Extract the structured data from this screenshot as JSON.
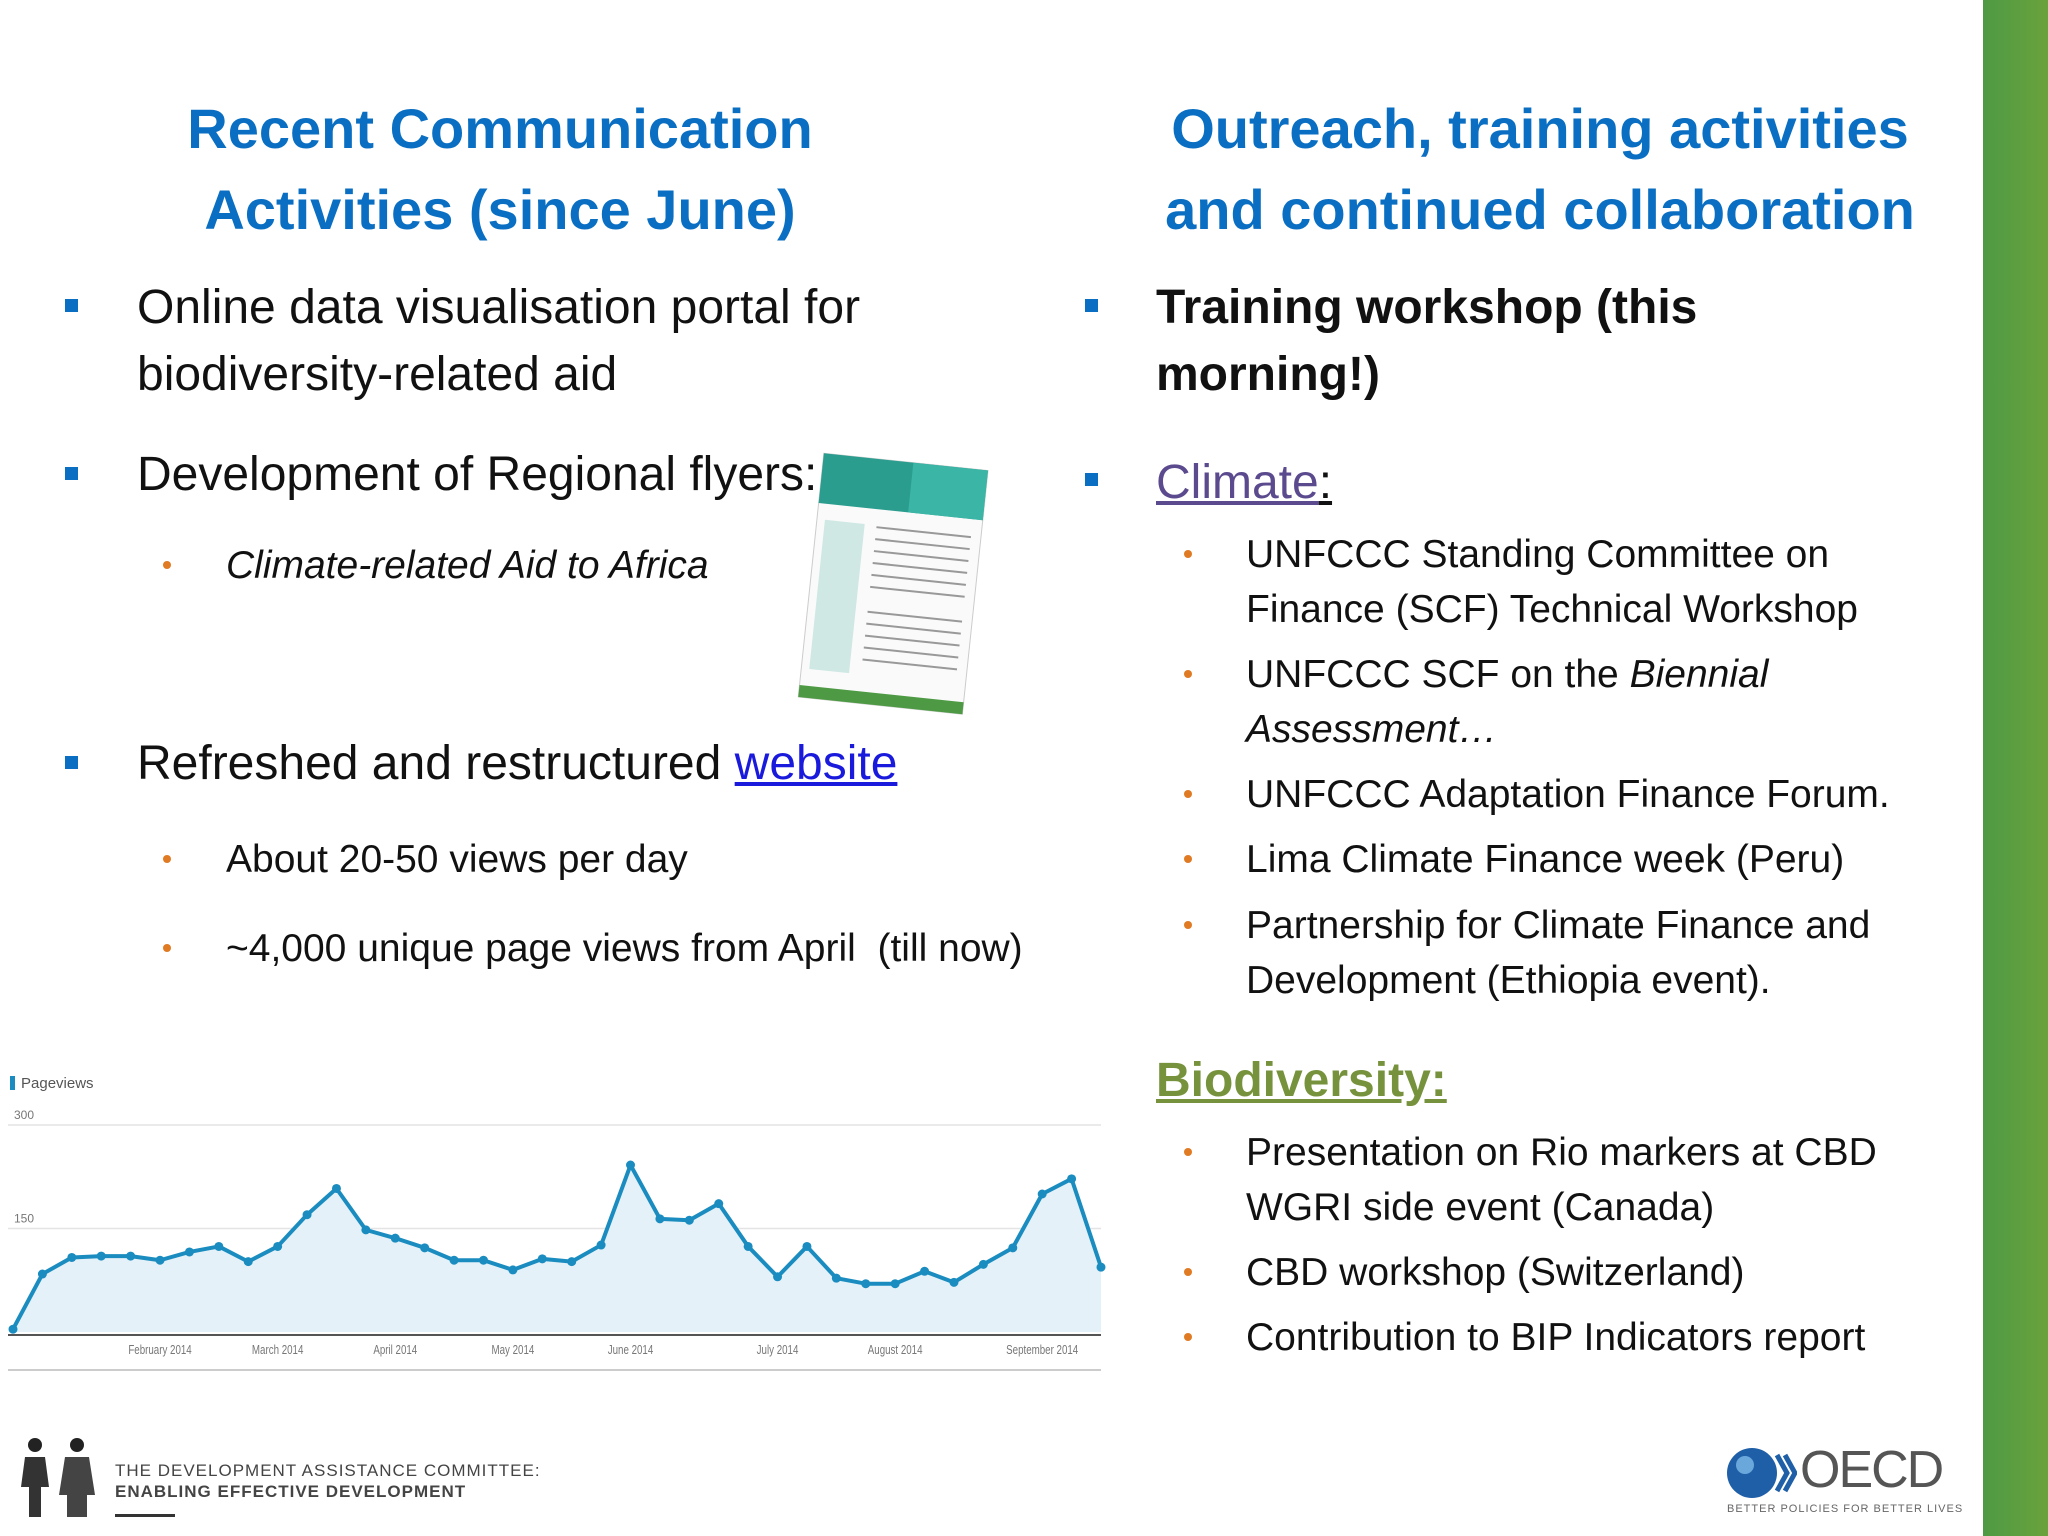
{
  "left": {
    "title": [
      "Recent Communication",
      "Activities (since June)"
    ],
    "items": [
      {
        "text": "Online data visualisation portal for biodiversity-related aid"
      },
      {
        "text": "Development of Regional flyers:",
        "subitems": [
          "Climate-related Aid to Africa"
        ]
      },
      {
        "segments": [
          "Refreshed and restructured ",
          "website"
        ],
        "subitems": [
          "About 20-50 views per day",
          "~4,000 unique page views from April  (till now)"
        ]
      }
    ]
  },
  "right": {
    "title": [
      "Outreach, training activities",
      "and continued collaboration"
    ],
    "items": [
      {
        "text": "Training workshop (this morning!)"
      },
      {
        "segments": [
          "Climate",
          ":"
        ],
        "subitems": [
          {
            "text": "UNFCCC Standing Committee on Finance (SCF) Technical Workshop"
          },
          {
            "segments": [
              "UNFCCC SCF on the ",
              "Biennial Assessment…"
            ]
          },
          {
            "text": "UNFCCC Adaptation Finance Forum."
          },
          {
            "text": "Lima Climate Finance week (Peru)"
          },
          {
            "text": "Partnership for Climate Finance and Development (Ethiopia event)."
          }
        ]
      }
    ],
    "biodiversity": {
      "heading": "Biodiversity:",
      "subitems": [
        "Presentation on Rio markers at CBD WGRI side event (Canada)",
        "CBD workshop (Switzerland)",
        "Contribution to BIP Indicators report"
      ]
    }
  },
  "chart_data": {
    "type": "line",
    "categories": [
      null,
      null,
      null,
      null,
      null,
      "February 2014",
      null,
      null,
      null,
      "March 2014",
      null,
      null,
      null,
      "April 2014",
      null,
      null,
      null,
      "May 2014",
      null,
      null,
      null,
      "June 2014",
      null,
      null,
      null,
      null,
      "July 2014",
      null,
      null,
      null,
      "August 2014",
      null,
      null,
      null,
      null,
      "September 2014",
      null,
      null
    ],
    "series": [
      {
        "name": "Pageviews",
        "color": "#1a8cbf",
        "values": [
          4,
          84,
          108,
          110,
          110,
          104,
          116,
          124,
          102,
          124,
          170,
          208,
          148,
          136,
          122,
          104,
          104,
          90,
          106,
          102,
          126,
          242,
          164,
          162,
          186,
          124,
          80,
          124,
          78,
          70,
          70,
          88,
          72,
          98,
          122,
          200,
          222,
          94
        ]
      }
    ],
    "ylim": [
      0,
      300
    ],
    "yticks": [
      150,
      300
    ],
    "grid": true
  },
  "footer": {
    "dac": [
      "THE DEVELOPMENT ASSISTANCE COMMITTEE:",
      "ENABLING EFFECTIVE DEVELOPMENT"
    ],
    "oecd": "OECD",
    "tagline": "BETTER POLICIES FOR BETTER LIVES"
  }
}
